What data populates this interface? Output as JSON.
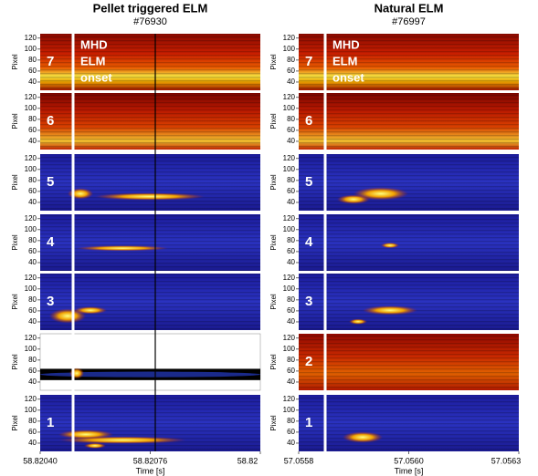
{
  "columns": [
    {
      "title": "Pellet triggered ELM",
      "shot": "#76930",
      "annotation": [
        "MHD",
        "ELM",
        "onset"
      ],
      "panels": [
        {
          "label": "7"
        },
        {
          "label": "6"
        },
        {
          "label": "5"
        },
        {
          "label": "4"
        },
        {
          "label": "3"
        },
        {},
        {
          "label": "1"
        }
      ],
      "x_ticks": [
        "58.82040",
        "58.82076",
        "58.82"
      ],
      "x_label": "Time [s]"
    },
    {
      "title": "Natural ELM",
      "shot": "#76997",
      "annotation": [
        "MHD",
        "ELM",
        "onset"
      ],
      "panels": [
        {
          "label": "7"
        },
        {
          "label": "6"
        },
        {
          "label": "5"
        },
        {
          "label": "4"
        },
        {
          "label": "3"
        },
        {
          "label": "2"
        },
        {
          "label": "1"
        }
      ],
      "x_ticks": [
        "57.0558",
        "57.0560",
        "57.0563"
      ],
      "x_label": "Time [s]"
    }
  ],
  "y_axis": {
    "label": "Pixel",
    "ticks": [
      120,
      100,
      80,
      60,
      40
    ]
  }
}
